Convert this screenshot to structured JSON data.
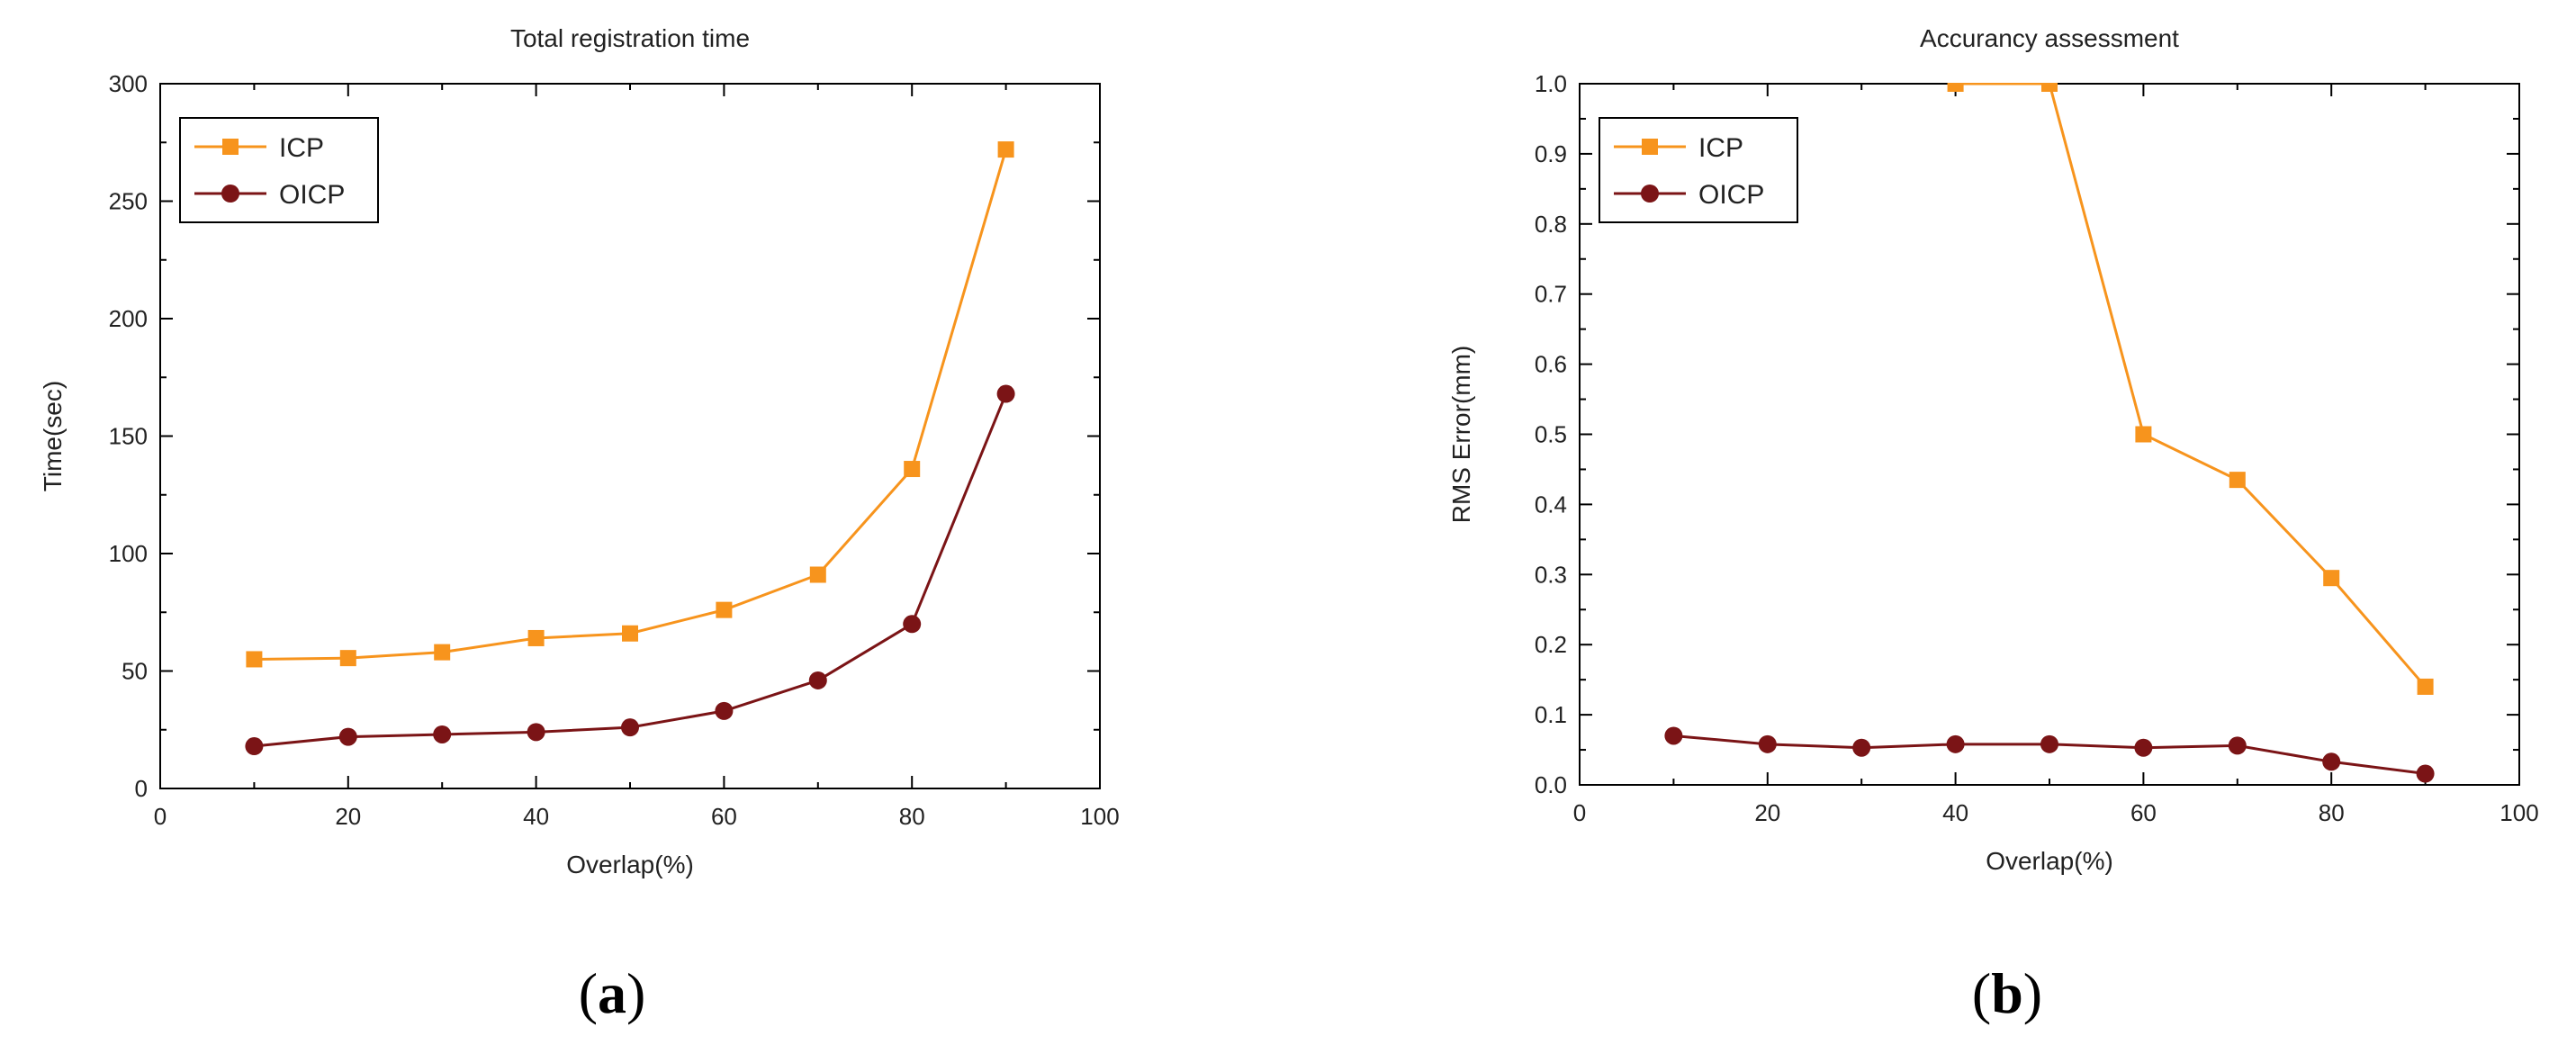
{
  "colors": {
    "icp": "#f7941d",
    "oicp": "#7b1416",
    "axis": "#000000"
  },
  "chart_data": [
    {
      "type": "line",
      "panel_label_parts": [
        "(",
        "a",
        ")"
      ],
      "title": "Total registration time",
      "xlabel": "Overlap(%)",
      "ylabel": "Time(sec)",
      "xlim": [
        0,
        100
      ],
      "ylim": [
        0,
        300
      ],
      "xticks": [
        0,
        20,
        40,
        60,
        80,
        100
      ],
      "yticks": [
        0,
        50,
        100,
        150,
        200,
        250,
        300
      ],
      "ytick_labels": [
        "0",
        "50",
        "100",
        "150",
        "200",
        "250",
        "300"
      ],
      "x": [
        10,
        20,
        30,
        40,
        50,
        60,
        70,
        80,
        90
      ],
      "legend_position": "top-left",
      "series": [
        {
          "name": "ICP",
          "marker": "square",
          "color_key": "icp",
          "values": [
            55,
            55.5,
            58,
            64,
            66,
            76,
            91,
            136,
            272
          ]
        },
        {
          "name": "OICP",
          "marker": "circle",
          "color_key": "oicp",
          "values": [
            18,
            22,
            23,
            24,
            26,
            33,
            46,
            70,
            168
          ]
        }
      ]
    },
    {
      "type": "line",
      "panel_label_parts": [
        "(",
        "b",
        ")"
      ],
      "title": "Accurancy assessment",
      "xlabel": "Overlap(%)",
      "ylabel": "RMS Error(mm)",
      "xlim": [
        0,
        100
      ],
      "ylim": [
        0,
        1.0
      ],
      "xticks": [
        0,
        20,
        40,
        60,
        80,
        100
      ],
      "yticks": [
        0,
        0.1,
        0.2,
        0.3,
        0.4,
        0.5,
        0.6,
        0.7,
        0.8,
        0.9,
        1.0
      ],
      "ytick_labels": [
        "0.0",
        "0.1",
        "0.2",
        "0.3",
        "0.4",
        "0.5",
        "0.6",
        "0.7",
        "0.8",
        "0.9",
        "1.0"
      ],
      "x": [
        10,
        20,
        30,
        40,
        50,
        60,
        70,
        80,
        90
      ],
      "legend_position": "top-left",
      "series": [
        {
          "name": "ICP",
          "marker": "square",
          "color_key": "icp",
          "values": [
            null,
            null,
            null,
            1.0,
            1.0,
            0.5,
            0.435,
            0.295,
            0.14
          ]
        },
        {
          "name": "OICP",
          "marker": "circle",
          "color_key": "oicp",
          "values": [
            0.07,
            0.058,
            0.053,
            0.058,
            0.058,
            0.053,
            0.056,
            0.033,
            0.016
          ]
        }
      ]
    }
  ]
}
